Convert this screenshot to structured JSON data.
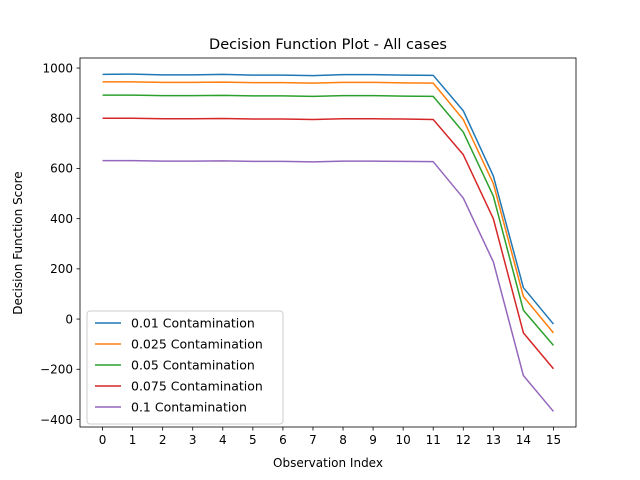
{
  "chart_data": {
    "type": "line",
    "title": "Decision Function Plot - All cases",
    "xlabel": "Observation Index",
    "ylabel": "Decision Function Score",
    "x": [
      0,
      1,
      2,
      3,
      4,
      5,
      6,
      7,
      8,
      9,
      10,
      11,
      12,
      13,
      14,
      15
    ],
    "xticks": [
      0,
      1,
      2,
      3,
      4,
      5,
      6,
      7,
      8,
      9,
      10,
      11,
      12,
      13,
      14,
      15
    ],
    "xlim": [
      -0.75,
      15.75
    ],
    "yticks": [
      -400,
      -200,
      0,
      200,
      400,
      600,
      800,
      1000
    ],
    "ytick_labels": [
      "−400",
      "−200",
      "0",
      "200",
      "400",
      "600",
      "800",
      "1000"
    ],
    "ylim": [
      -430,
      1040
    ],
    "grid": false,
    "legend_position": "lower-left",
    "series": [
      {
        "name": "0.01 Contamination",
        "color": "#1f77b4",
        "values": [
          975,
          976,
          973,
          973,
          975,
          972,
          972,
          970,
          974,
          974,
          972,
          971,
          830,
          570,
          125,
          -20
        ]
      },
      {
        "name": "0.025 Contamination",
        "color": "#ff7f0e",
        "values": [
          945,
          945,
          943,
          943,
          944,
          942,
          942,
          940,
          943,
          943,
          941,
          940,
          795,
          540,
          90,
          -55
        ]
      },
      {
        "name": "0.05 Contamination",
        "color": "#2ca02c",
        "values": [
          892,
          892,
          890,
          890,
          891,
          889,
          889,
          887,
          890,
          890,
          888,
          887,
          745,
          490,
          35,
          -105
        ]
      },
      {
        "name": "0.075 Contamination",
        "color": "#d62728",
        "values": [
          800,
          800,
          798,
          798,
          799,
          797,
          797,
          795,
          798,
          798,
          797,
          795,
          655,
          400,
          -55,
          -198
        ]
      },
      {
        "name": "0.1 Contamination",
        "color": "#9467bd",
        "values": [
          631,
          631,
          629,
          629,
          630,
          628,
          628,
          626,
          629,
          629,
          628,
          627,
          482,
          228,
          -225,
          -368
        ]
      }
    ]
  }
}
